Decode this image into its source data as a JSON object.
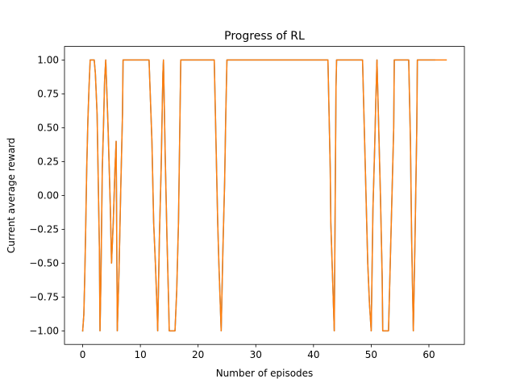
{
  "chart_data": {
    "type": "line",
    "title": "Progress of RL",
    "xlabel": "Number of episodes",
    "ylabel": "Current average reward",
    "xlim": [
      -3.15,
      66.15
    ],
    "ylim": [
      -1.1,
      1.1
    ],
    "x_ticks": [
      0,
      10,
      20,
      30,
      40,
      50,
      60
    ],
    "y_ticks": [
      -1.0,
      -0.75,
      -0.5,
      -0.25,
      0.0,
      0.25,
      0.5,
      0.75,
      1.0
    ],
    "x_tick_labels": [
      "0",
      "10",
      "20",
      "30",
      "40",
      "50",
      "60"
    ],
    "y_tick_labels": [
      "−1.00",
      "−0.75",
      "−0.50",
      "−0.25",
      "0.00",
      "0.25",
      "0.50",
      "0.75",
      "1.00"
    ],
    "grid": false,
    "legend": "none",
    "series": [
      {
        "color": "#1f77b4",
        "x": [
          0,
          0.2,
          0.35,
          0.5,
          0.7,
          0.9,
          1.1,
          1.3,
          1.5,
          1.8,
          2.0,
          2.2,
          2.5,
          2.7,
          2.9,
          3.0,
          3.15,
          3.4,
          3.6,
          3.8,
          4.0,
          4.4,
          4.8,
          5.0,
          5.3,
          5.6,
          5.8,
          6.0,
          6.3,
          6.6,
          6.9,
          7.0,
          8.0,
          10.0,
          11.5,
          12.0,
          12.3,
          12.6,
          12.9,
          13.0,
          13.3,
          13.6,
          13.9,
          14.0,
          14.3,
          14.6,
          14.9,
          15.0,
          16.0,
          16.3,
          16.6,
          16.8,
          17.0,
          18.0,
          22.8,
          23.0,
          23.2,
          23.4,
          23.6,
          23.8,
          24.0,
          24.3,
          24.6,
          24.8,
          25.0,
          35.0,
          42.5,
          42.7,
          42.9,
          43.0,
          43.3,
          43.6,
          43.9,
          44.0,
          45.0,
          48.5,
          48.8,
          49.1,
          49.4,
          49.7,
          50.0,
          50.3,
          50.6,
          50.8,
          51.0,
          51.3,
          51.6,
          51.9,
          52.0,
          53.0,
          53.3,
          53.6,
          53.9,
          54.0,
          54.5,
          55.0,
          56.5,
          56.8,
          57.0,
          57.3,
          57.6,
          57.9,
          58.0,
          59.0,
          60.0,
          61.0
        ],
        "y": [
          -1.0,
          -0.88,
          -0.62,
          -0.3,
          0.2,
          0.55,
          0.8,
          1.0,
          1.0,
          1.0,
          1.0,
          0.9,
          0.6,
          0.1,
          -0.4,
          -1.0,
          -0.65,
          0.2,
          0.5,
          0.85,
          1.0,
          0.5,
          -0.1,
          -0.5,
          -0.2,
          0.2,
          0.4,
          -1.0,
          -0.55,
          0.05,
          0.6,
          1.0,
          1.0,
          1.0,
          1.0,
          0.4,
          -0.2,
          -0.5,
          -0.85,
          -1.0,
          -0.3,
          0.2,
          0.9,
          1.0,
          0.3,
          -0.3,
          -0.8,
          -1.0,
          -1.0,
          -0.7,
          -0.2,
          0.4,
          1.0,
          1.0,
          1.0,
          0.6,
          0.2,
          -0.2,
          -0.5,
          -0.75,
          -1.0,
          -0.4,
          0.1,
          0.6,
          1.0,
          1.0,
          1.0,
          0.6,
          0.2,
          -0.2,
          -0.6,
          -1.0,
          0.8,
          1.0,
          1.0,
          1.0,
          0.5,
          0.0,
          -0.5,
          -0.8,
          -1.0,
          -0.1,
          0.35,
          0.7,
          1.0,
          0.5,
          0.0,
          -0.6,
          -1.0,
          -1.0,
          -0.5,
          0.0,
          0.5,
          1.0,
          1.0,
          1.0,
          1.0,
          0.4,
          -0.3,
          -1.0,
          -0.3,
          0.5,
          1.0,
          1.0,
          1.0,
          1.0
        ]
      },
      {
        "color": "#ff7f0e",
        "x": [
          0,
          0.2,
          0.35,
          0.5,
          0.7,
          0.9,
          1.1,
          1.3,
          1.5,
          1.8,
          2.0,
          2.2,
          2.5,
          2.7,
          2.9,
          3.0,
          3.15,
          3.4,
          3.6,
          3.8,
          4.0,
          4.4,
          4.8,
          5.0,
          5.3,
          5.6,
          5.8,
          6.0,
          6.3,
          6.6,
          6.9,
          7.0,
          8.0,
          10.0,
          11.5,
          12.0,
          12.3,
          12.6,
          12.9,
          13.0,
          13.3,
          13.6,
          13.9,
          14.0,
          14.3,
          14.6,
          14.9,
          15.0,
          16.0,
          16.3,
          16.6,
          16.8,
          17.0,
          18.0,
          22.8,
          23.0,
          23.2,
          23.4,
          23.6,
          23.8,
          24.0,
          24.3,
          24.6,
          24.8,
          25.0,
          35.0,
          42.5,
          42.7,
          42.9,
          43.0,
          43.3,
          43.6,
          43.9,
          44.0,
          45.0,
          48.5,
          48.8,
          49.1,
          49.4,
          49.7,
          50.0,
          50.3,
          50.6,
          50.8,
          51.0,
          51.3,
          51.6,
          51.9,
          52.0,
          53.0,
          53.3,
          53.6,
          53.9,
          54.0,
          54.5,
          55.0,
          56.5,
          56.8,
          57.0,
          57.3,
          57.6,
          57.9,
          58.0,
          59.0,
          60.0,
          61.0,
          62.0,
          63.0
        ],
        "y": [
          -1.0,
          -0.88,
          -0.62,
          -0.3,
          0.2,
          0.55,
          0.8,
          1.0,
          1.0,
          1.0,
          1.0,
          0.9,
          0.6,
          0.1,
          -0.4,
          -1.0,
          -0.65,
          0.2,
          0.5,
          0.85,
          1.0,
          0.5,
          -0.1,
          -0.5,
          -0.2,
          0.2,
          0.4,
          -1.0,
          -0.55,
          0.05,
          0.6,
          1.0,
          1.0,
          1.0,
          1.0,
          0.4,
          -0.2,
          -0.5,
          -0.85,
          -1.0,
          -0.3,
          0.2,
          0.9,
          1.0,
          0.3,
          -0.3,
          -0.8,
          -1.0,
          -1.0,
          -0.7,
          -0.2,
          0.4,
          1.0,
          1.0,
          1.0,
          0.6,
          0.2,
          -0.2,
          -0.5,
          -0.75,
          -1.0,
          -0.4,
          0.1,
          0.6,
          1.0,
          1.0,
          1.0,
          0.6,
          0.2,
          -0.2,
          -0.6,
          -1.0,
          0.8,
          1.0,
          1.0,
          1.0,
          0.5,
          0.0,
          -0.5,
          -0.8,
          -1.0,
          -0.1,
          0.35,
          0.7,
          1.0,
          0.5,
          0.0,
          -0.6,
          -1.0,
          -1.0,
          -0.5,
          0.0,
          0.5,
          1.0,
          1.0,
          1.0,
          1.0,
          0.4,
          -0.3,
          -1.0,
          -0.3,
          0.5,
          1.0,
          1.0,
          1.0,
          1.0,
          1.0,
          1.0
        ]
      }
    ]
  }
}
